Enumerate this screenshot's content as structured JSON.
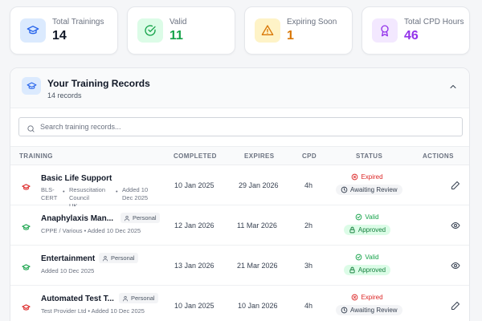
{
  "stats": [
    {
      "label": "Total Trainings",
      "value": "14",
      "icon": "graduation-cap-icon",
      "color": "#111827",
      "icon_bg": "#dbeafe"
    },
    {
      "label": "Valid",
      "value": "11",
      "icon": "check-circle-icon",
      "color": "#16a34a",
      "icon_bg": "#dcfce7"
    },
    {
      "label": "Expiring Soon",
      "value": "1",
      "icon": "warning-icon",
      "color": "#d97706",
      "icon_bg": "#fef3c7"
    },
    {
      "label": "Total CPD Hours",
      "value": "46",
      "icon": "award-icon",
      "color": "#9333ea",
      "icon_bg": "#f3e8ff"
    }
  ],
  "panel": {
    "title": "Your Training Records",
    "subtitle": "14 records"
  },
  "search": {
    "placeholder": "Search training records..."
  },
  "columns": {
    "training": "TRAINING",
    "completed": "COMPLETED",
    "expires": "EXPIRES",
    "cpd": "CPD",
    "status": "STATUS",
    "actions": "ACTIONS"
  },
  "records": [
    {
      "name": "Basic Life Support",
      "badge": "",
      "meta": [
        "BLS-",
        "CERT",
        "Resuscitation",
        "Council UK",
        "Added 10",
        "Dec 2025"
      ],
      "completed": "10 Jan 2025",
      "expires": "29 Jan 2026",
      "cpd": "4h",
      "validity": "Expired",
      "approval": "Awaiting Review",
      "action": "edit-icon"
    },
    {
      "name": "Anaphylaxis Man...",
      "badge": "Personal",
      "meta": "CPPE / Various  •  Added 10 Dec 2025",
      "completed": "12 Jan 2026",
      "expires": "11 Mar 2026",
      "cpd": "2h",
      "validity": "Valid",
      "approval": "Approved",
      "action": "view-icon"
    },
    {
      "name": "Entertainment",
      "badge": "Personal",
      "meta": "Added 10 Dec 2025",
      "completed": "13 Jan 2026",
      "expires": "21 Mar 2026",
      "cpd": "3h",
      "validity": "Valid",
      "approval": "Approved",
      "action": "view-icon"
    },
    {
      "name": "Automated Test T...",
      "badge": "Personal",
      "meta": "Test Provider Ltd  •  Added 10 Dec 2025",
      "completed": "10 Jan 2025",
      "expires": "10 Jan 2026",
      "cpd": "4h",
      "validity": "Expired",
      "approval": "Awaiting Review",
      "action": "edit-icon"
    }
  ]
}
